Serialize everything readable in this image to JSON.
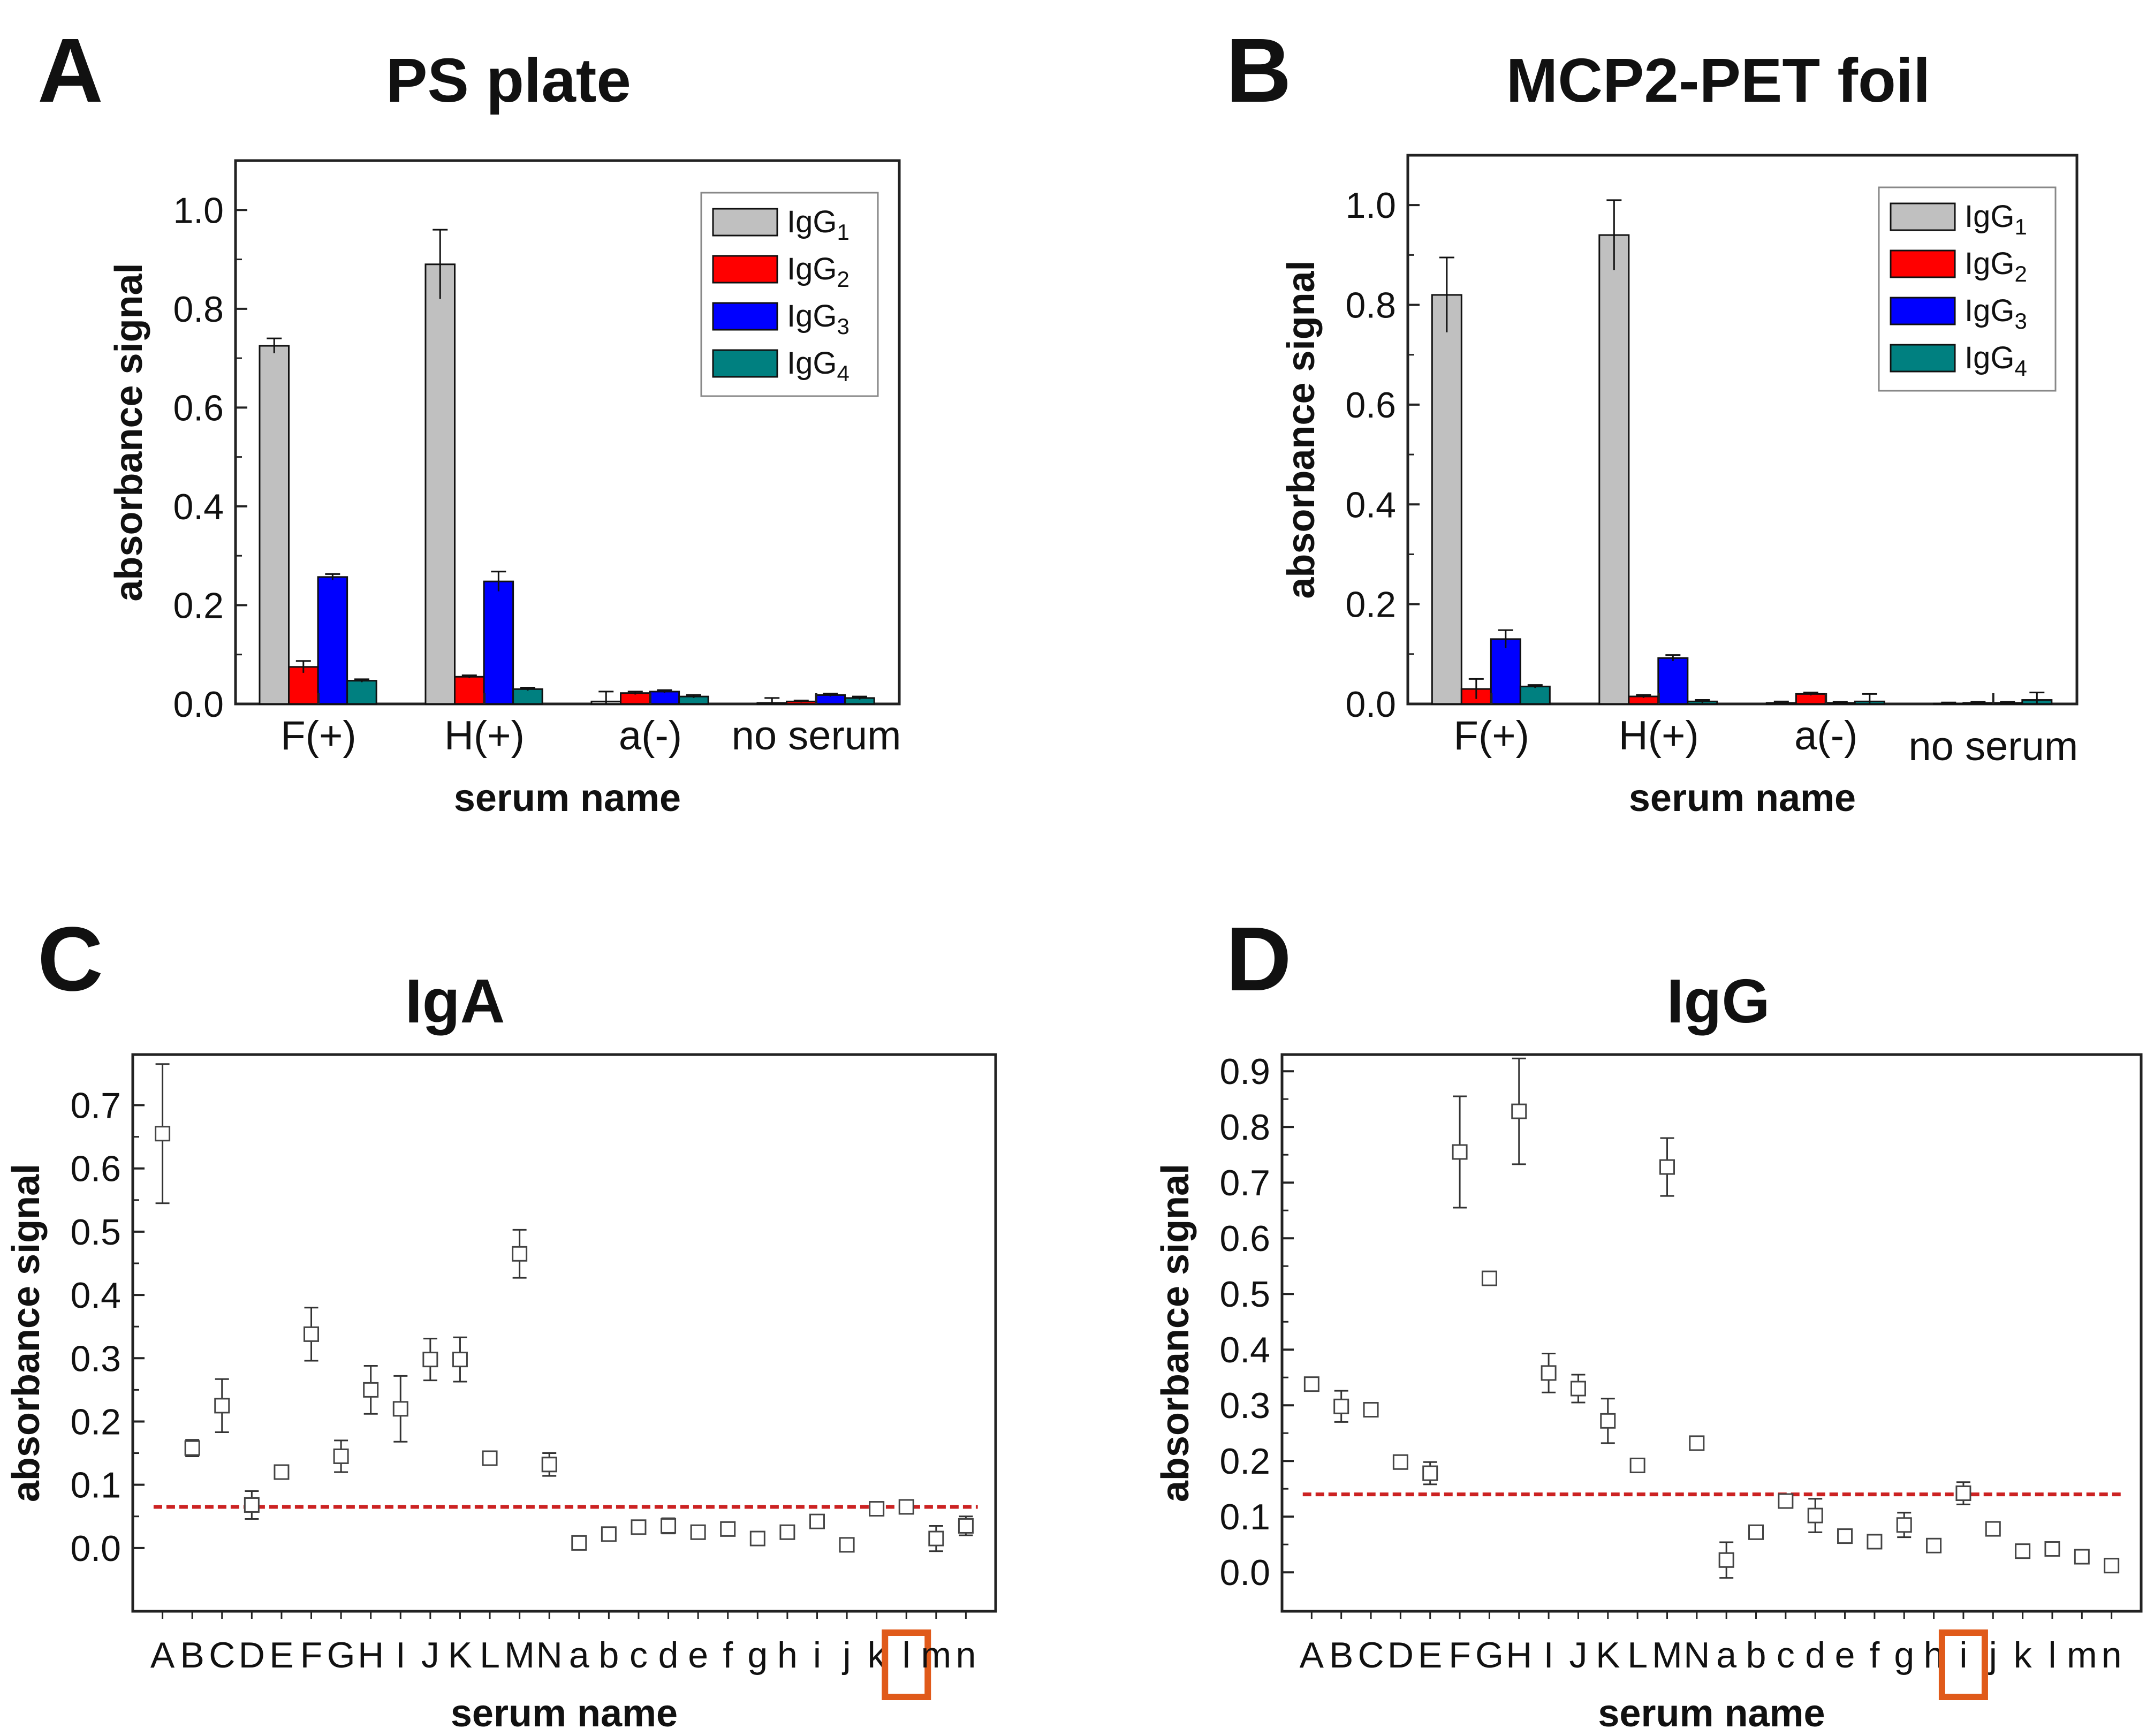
{
  "panels": {
    "A": {
      "letter": "A",
      "title": "PS plate"
    },
    "B": {
      "letter": "B",
      "title": "MCP2-PET foil"
    },
    "C": {
      "letter": "C",
      "title": "IgA"
    },
    "D": {
      "letter": "D",
      "title": "IgG"
    }
  },
  "colors": {
    "igg1": "#c0c0c0",
    "igg2": "#ff0000",
    "igg3": "#0000ff",
    "igg4": "#008080",
    "threshold": "#cc2222",
    "highlight": "#e05a1a"
  },
  "chart_data": [
    {
      "id": "A",
      "type": "bar",
      "title": "PS plate",
      "xlabel": "serum name",
      "ylabel": "absorbance signal",
      "ylim": [
        0,
        1.1
      ],
      "yticks": [
        0.0,
        0.2,
        0.4,
        0.6,
        0.8,
        1.0
      ],
      "categories": [
        "F(+)",
        "H(+)",
        "a(-)",
        "no serum"
      ],
      "legend_position": "top-right",
      "series": [
        {
          "name": "IgG",
          "sub": "1",
          "color": "#c0c0c0",
          "values": [
            0.725,
            0.89,
            0.005,
            0.002
          ],
          "errors": [
            0.015,
            0.07,
            0.02,
            0.01
          ]
        },
        {
          "name": "IgG",
          "sub": "2",
          "color": "#ff0000",
          "values": [
            0.075,
            0.055,
            0.022,
            0.005
          ],
          "errors": [
            0.012,
            0.003,
            0.003,
            0.002
          ]
        },
        {
          "name": "IgG",
          "sub": "3",
          "color": "#0000ff",
          "values": [
            0.257,
            0.248,
            0.025,
            0.018
          ],
          "errors": [
            0.006,
            0.02,
            0.003,
            0.003
          ]
        },
        {
          "name": "IgG",
          "sub": "4",
          "color": "#008080",
          "values": [
            0.047,
            0.03,
            0.015,
            0.012
          ],
          "errors": [
            0.003,
            0.003,
            0.003,
            0.003
          ]
        }
      ]
    },
    {
      "id": "B",
      "type": "bar",
      "title": "MCP2-PET foil",
      "xlabel": "serum name",
      "ylabel": "absorbance signal",
      "ylim": [
        0,
        1.1
      ],
      "yticks": [
        0.0,
        0.2,
        0.4,
        0.6,
        0.8,
        1.0
      ],
      "categories": [
        "F(+)",
        "H(+)",
        "a(-)",
        "no serum"
      ],
      "legend_position": "top-right",
      "series": [
        {
          "name": "IgG",
          "sub": "1",
          "color": "#c0c0c0",
          "values": [
            0.82,
            0.94,
            0.002,
            0.001
          ],
          "errors": [
            0.075,
            0.07,
            0.003,
            0.002
          ]
        },
        {
          "name": "IgG",
          "sub": "2",
          "color": "#ff0000",
          "values": [
            0.03,
            0.015,
            0.02,
            0.002
          ],
          "errors": [
            0.02,
            0.003,
            0.003,
            0.002
          ]
        },
        {
          "name": "IgG",
          "sub": "3",
          "color": "#0000ff",
          "values": [
            0.13,
            0.092,
            0.002,
            0.002
          ],
          "errors": [
            0.018,
            0.006,
            0.002,
            0.002
          ]
        },
        {
          "name": "IgG",
          "sub": "4",
          "color": "#008080",
          "values": [
            0.035,
            0.005,
            0.005,
            0.008
          ],
          "errors": [
            0.003,
            0.003,
            0.015,
            0.015
          ]
        }
      ]
    },
    {
      "id": "C",
      "type": "scatter",
      "title": "IgA",
      "xlabel": "serum name",
      "ylabel": "absorbance signal",
      "ylim": [
        -0.1,
        0.78
      ],
      "yticks": [
        0.0,
        0.1,
        0.2,
        0.3,
        0.4,
        0.5,
        0.6,
        0.7
      ],
      "categories": [
        "A",
        "B",
        "C",
        "D",
        "E",
        "F",
        "G",
        "H",
        "I",
        "J",
        "K",
        "L",
        "M",
        "N",
        "a",
        "b",
        "c",
        "d",
        "e",
        "f",
        "g",
        "h",
        "i",
        "j",
        "k",
        "l",
        "m",
        "n"
      ],
      "values": [
        0.655,
        0.158,
        0.225,
        0.068,
        0.12,
        0.338,
        0.145,
        0.25,
        0.22,
        0.298,
        0.298,
        0.142,
        0.465,
        0.132,
        0.008,
        0.022,
        0.033,
        0.035,
        0.025,
        0.03,
        0.015,
        0.025,
        0.042,
        0.005,
        0.062,
        0.065,
        0.015,
        0.035
      ],
      "errors": [
        0.11,
        0.013,
        0.042,
        0.022,
        0.008,
        0.042,
        0.025,
        0.038,
        0.052,
        0.033,
        0.035,
        0.008,
        0.038,
        0.018,
        0.006,
        0.008,
        0.008,
        0.012,
        0.006,
        0.006,
        0.006,
        0.006,
        0.008,
        0.006,
        0.006,
        0.006,
        0.02,
        0.015
      ],
      "threshold": 0.065,
      "highlighted_category": "l"
    },
    {
      "id": "D",
      "type": "scatter",
      "title": "IgG",
      "xlabel": "serum name",
      "ylabel": "absorbance signal",
      "ylim": [
        -0.07,
        0.93
      ],
      "yticks": [
        0.0,
        0.1,
        0.2,
        0.3,
        0.4,
        0.5,
        0.6,
        0.7,
        0.8,
        0.9
      ],
      "categories": [
        "A",
        "B",
        "C",
        "D",
        "E",
        "F",
        "G",
        "H",
        "I",
        "J",
        "K",
        "L",
        "M",
        "N",
        "a",
        "b",
        "c",
        "d",
        "e",
        "f",
        "g",
        "h",
        "i",
        "j",
        "k",
        "l",
        "m",
        "n"
      ],
      "values": [
        0.338,
        0.298,
        0.292,
        0.198,
        0.178,
        0.755,
        0.528,
        0.828,
        0.358,
        0.33,
        0.272,
        0.192,
        0.728,
        0.232,
        0.022,
        0.072,
        0.128,
        0.102,
        0.065,
        0.055,
        0.085,
        0.048,
        0.142,
        0.078,
        0.038,
        0.042,
        0.028,
        0.012
      ],
      "errors": [
        0.008,
        0.028,
        0.01,
        0.008,
        0.02,
        0.1,
        0.008,
        0.095,
        0.035,
        0.025,
        0.04,
        0.008,
        0.052,
        0.012,
        0.032,
        0.008,
        0.008,
        0.03,
        0.008,
        0.008,
        0.022,
        0.008,
        0.02,
        0.01,
        0.008,
        0.008,
        0.008,
        0.008
      ],
      "threshold": 0.14,
      "highlighted_category": "i"
    }
  ]
}
